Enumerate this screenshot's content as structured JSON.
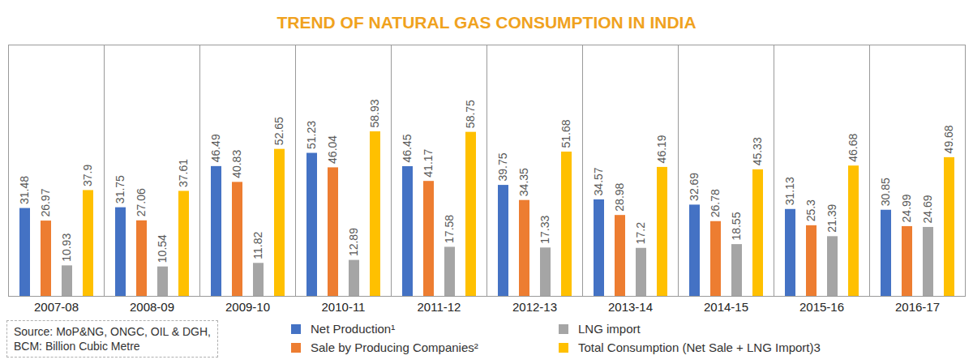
{
  "chart_data": {
    "type": "bar",
    "title": "TREND OF NATURAL GAS CONSUMPTION IN INDIA",
    "notes": [
      "Source: MoP&NG, ONGC, OIL & DGH,",
      "BCM: Billion Cubic Metre"
    ],
    "categories": [
      "2007-08",
      "2008-09",
      "2009-10",
      "2010-11",
      "2011-12",
      "2012-13",
      "2013-14",
      "2014-15",
      "2015-16",
      "2016-17"
    ],
    "series": [
      {
        "name": "Net Production¹",
        "color": "#4472C4",
        "values": [
          31.48,
          31.75,
          46.49,
          51.23,
          46.45,
          39.75,
          34.57,
          32.69,
          31.13,
          30.85
        ]
      },
      {
        "name": "Sale by Producing Companies²",
        "color": "#ED7D31",
        "values": [
          26.97,
          27.06,
          40.83,
          46.04,
          41.17,
          34.35,
          28.98,
          26.78,
          25.3,
          24.99
        ]
      },
      {
        "name": "LNG import",
        "color": "#A5A5A5",
        "values": [
          10.93,
          10.54,
          11.82,
          12.89,
          17.58,
          17.33,
          17.2,
          18.55,
          21.39,
          24.69
        ]
      },
      {
        "name": "Total Consumption  (Net Sale + LNG Import)3",
        "color": "#FFC000",
        "values": [
          37.9,
          37.61,
          52.65,
          58.93,
          58.75,
          51.68,
          46.19,
          45.33,
          46.68,
          49.68
        ]
      }
    ],
    "ylim": [
      0,
      90
    ],
    "yticks": [],
    "tick_labels": "x",
    "data_labels": true,
    "legend": "bottom"
  }
}
